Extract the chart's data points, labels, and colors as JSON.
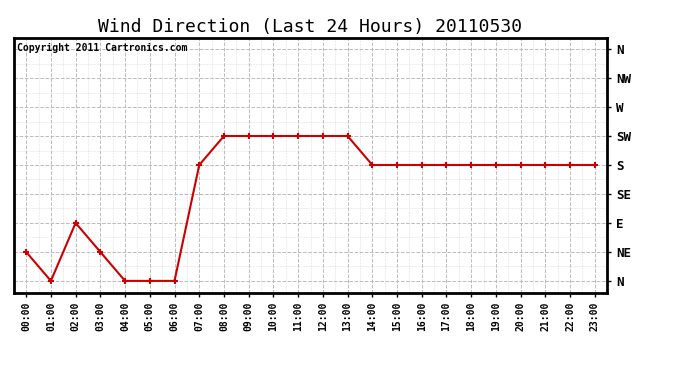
{
  "title": "Wind Direction (Last 24 Hours) 20110530",
  "copyright_text": "Copyright 2011 Cartronics.com",
  "x_labels": [
    "00:00",
    "01:00",
    "02:00",
    "03:00",
    "04:00",
    "05:00",
    "06:00",
    "07:00",
    "08:00",
    "09:00",
    "10:00",
    "11:00",
    "12:00",
    "13:00",
    "14:00",
    "15:00",
    "16:00",
    "17:00",
    "18:00",
    "19:00",
    "20:00",
    "21:00",
    "22:00",
    "23:00"
  ],
  "y_ticks_labels": [
    "N",
    "NE",
    "E",
    "SE",
    "S",
    "SW",
    "W",
    "NW",
    "N"
  ],
  "y_ticks_values": [
    0,
    45,
    90,
    135,
    180,
    225,
    270,
    315,
    360
  ],
  "data_x": [
    0,
    1,
    2,
    3,
    4,
    5,
    6,
    7,
    8,
    9,
    10,
    11,
    12,
    13,
    14,
    15,
    16,
    17,
    18,
    19,
    20,
    21,
    22,
    23
  ],
  "data_y": [
    45,
    0,
    90,
    45,
    0,
    0,
    0,
    180,
    225,
    225,
    225,
    225,
    225,
    225,
    180,
    180,
    180,
    180,
    180,
    180,
    180,
    180,
    180,
    180
  ],
  "line_color": "#cc0000",
  "marker": "+",
  "marker_size": 5,
  "marker_lw": 1.5,
  "line_width": 1.5,
  "bg_color": "#ffffff",
  "plot_bg_color": "#ffffff",
  "grid_color": "#bbbbbb",
  "grid_style": "--",
  "title_fontsize": 13,
  "copyright_fontsize": 7,
  "tick_fontsize": 7,
  "ytick_fontsize": 9,
  "border_color": "#000000",
  "ylim_min": -18,
  "ylim_max": 378,
  "xlim_min": -0.5,
  "xlim_max": 23.5
}
